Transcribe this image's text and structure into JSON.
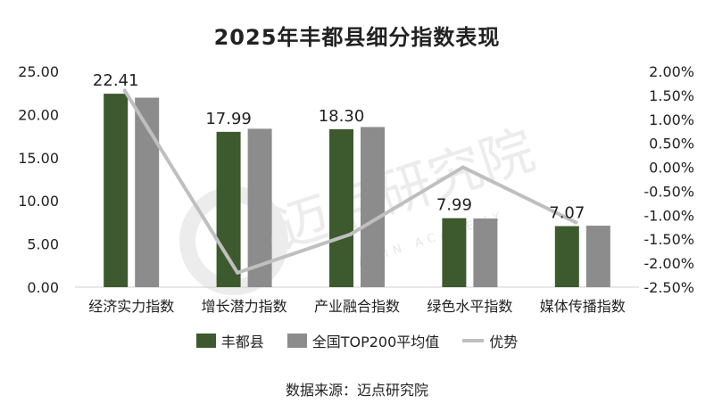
{
  "chart_data": {
    "type": "bar",
    "title": "2025年丰都县细分指数表现",
    "categories": [
      "经济实力指数",
      "增长潜力指数",
      "产业融合指数",
      "绿色水平指数",
      "媒体传播指数"
    ],
    "series": [
      {
        "name": "丰都县",
        "type": "bar",
        "axis": "left",
        "color": "#3c5a2e",
        "values": [
          22.41,
          17.99,
          18.3,
          7.99,
          7.07
        ]
      },
      {
        "name": "全国TOP200平均值",
        "type": "bar",
        "axis": "left",
        "color": "#8c8c8c",
        "values": [
          21.95,
          18.35,
          18.55,
          7.95,
          7.12
        ]
      },
      {
        "name": "优势",
        "type": "line",
        "axis": "right",
        "color": "#bfbfbf",
        "values": [
          1.6,
          -2.2,
          -1.4,
          0.0,
          -1.15
        ]
      }
    ],
    "data_labels": [
      "22.41",
      "17.99",
      "18.30",
      "7.99",
      "7.07"
    ],
    "y_left": {
      "min": 0,
      "max": 25,
      "ticks": [
        "0.00",
        "5.00",
        "10.00",
        "15.00",
        "20.00",
        "25.00"
      ]
    },
    "y_right": {
      "min": -2.5,
      "max": 2.0,
      "unit": "%",
      "ticks": [
        "-2.50%",
        "-2.00%",
        "-1.50%",
        "-1.00%",
        "-0.50%",
        "0.00%",
        "0.50%",
        "1.00%",
        "1.50%",
        "2.00%"
      ]
    },
    "legend_position": "bottom",
    "grid": false,
    "watermark": {
      "main": "迈点研究院",
      "sub": "MEADIN ACADEMY"
    }
  },
  "source_text": "数据来源：迈点研究院"
}
